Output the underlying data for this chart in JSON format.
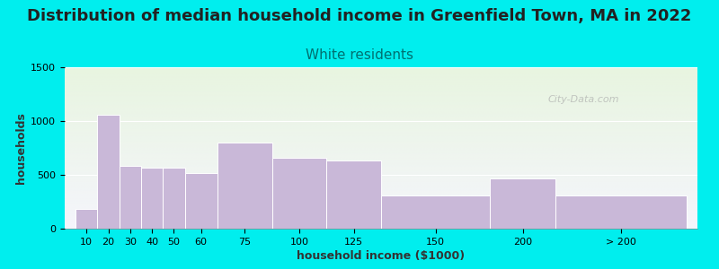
{
  "title": "Distribution of median household income in Greenfield Town, MA in 2022",
  "subtitle": "White residents",
  "xlabel": "household income ($1000)",
  "ylabel": "households",
  "bg_color": "#00EEEE",
  "bar_color": "#C9B8D8",
  "bar_edge_color": "#FFFFFF",
  "categories": [
    "10",
    "20",
    "30",
    "40",
    "50",
    "60",
    "75",
    "100",
    "125",
    "150",
    "200",
    "> 200"
  ],
  "values": [
    180,
    1060,
    580,
    570,
    570,
    520,
    800,
    660,
    635,
    305,
    470,
    305
  ],
  "ylim": [
    0,
    1500
  ],
  "yticks": [
    0,
    500,
    1000,
    1500
  ],
  "title_fontsize": 13,
  "subtitle_fontsize": 11,
  "subtitle_color": "#007070",
  "title_color": "#222222",
  "axis_label_fontsize": 9,
  "tick_fontsize": 8,
  "watermark": "City-Data.com",
  "plot_bg_color_top": "#E8F5E0",
  "plot_bg_color_bottom": "#EEF0F8",
  "x_positions": [
    10,
    20,
    30,
    40,
    50,
    60,
    75,
    100,
    125,
    150,
    200,
    230
  ],
  "widths": [
    10,
    10,
    10,
    10,
    10,
    15,
    25,
    25,
    25,
    50,
    30,
    60
  ]
}
